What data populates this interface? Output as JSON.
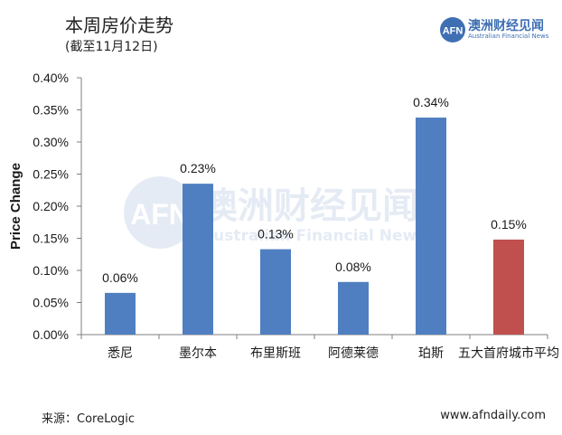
{
  "header": {
    "title": "本周房价走势",
    "subtitle": "(截至11月12日)"
  },
  "logo": {
    "icon": "afn-logo-icon",
    "icon_text": "AFN",
    "name_cn": "澳洲财经见闻",
    "name_en": "Australian Financial News"
  },
  "watermark": {
    "icon_text": "AFN",
    "name_cn": "澳洲财经见闻",
    "name_en": "Australian Financial News"
  },
  "footer": {
    "source": "来源：CoreLogic",
    "website": "www.afndaily.com"
  },
  "chart_data": {
    "type": "bar",
    "ylabel": "Price Change",
    "xlabel": "",
    "ylim": [
      0,
      0.4
    ],
    "yticks": [
      "0.00%",
      "0.05%",
      "0.10%",
      "0.15%",
      "0.20%",
      "0.25%",
      "0.30%",
      "0.35%",
      "0.40%"
    ],
    "categories": [
      "悉尼",
      "墨尔本",
      "布里斯班",
      "阿德莱德",
      "珀斯",
      "五大首府城市平均"
    ],
    "values": [
      0.065,
      0.235,
      0.133,
      0.082,
      0.338,
      0.148
    ],
    "labels": [
      "0.06%",
      "0.23%",
      "0.13%",
      "0.08%",
      "0.34%",
      "0.15%"
    ],
    "colors": [
      "#4f7fc0",
      "#4f7fc0",
      "#4f7fc0",
      "#4f7fc0",
      "#4f7fc0",
      "#c0504d"
    ],
    "grid": false
  }
}
